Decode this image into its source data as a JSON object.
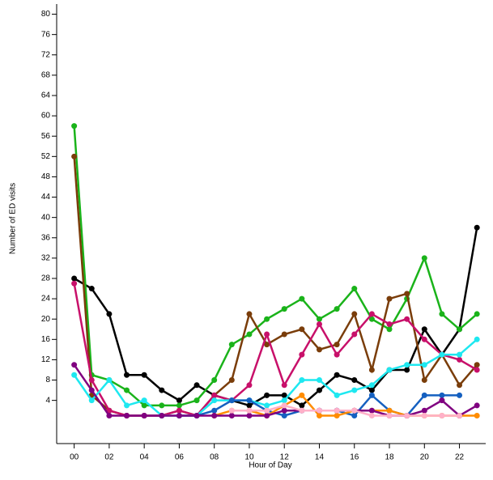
{
  "chart_data": {
    "type": "line",
    "x_label": "Hour of Day",
    "y_label": "Number of ED visits",
    "x": [
      0,
      1,
      2,
      3,
      4,
      5,
      6,
      7,
      8,
      9,
      10,
      11,
      12,
      13,
      14,
      15,
      16,
      17,
      18,
      19,
      20,
      21,
      22,
      23
    ],
    "xlim": [
      -1,
      23.5
    ],
    "xticks": [
      {
        "value": 0,
        "label": "00"
      },
      {
        "value": 2,
        "label": "02"
      },
      {
        "value": 4,
        "label": "04"
      },
      {
        "value": 6,
        "label": "06"
      },
      {
        "value": 8,
        "label": "08"
      },
      {
        "value": 10,
        "label": "10"
      },
      {
        "value": 12,
        "label": "12"
      },
      {
        "value": 14,
        "label": "14"
      },
      {
        "value": 16,
        "label": "16"
      },
      {
        "value": 18,
        "label": "18"
      },
      {
        "value": 20,
        "label": "20"
      },
      {
        "value": 22,
        "label": "22"
      }
    ],
    "ylim": [
      -4.5,
      82
    ],
    "yticks": [
      4,
      8,
      12,
      16,
      20,
      24,
      28,
      32,
      36,
      40,
      44,
      48,
      52,
      56,
      60,
      64,
      68,
      72,
      76,
      80
    ],
    "series": [
      {
        "color": "#000000",
        "values": [
          28,
          26,
          21,
          9,
          9,
          6,
          4,
          7,
          5,
          4,
          3,
          5,
          5,
          3,
          6,
          9,
          8,
          6,
          10,
          10,
          18,
          13,
          18,
          38
        ]
      },
      {
        "color": "#1ab31a",
        "values": [
          58,
          9,
          8,
          6,
          3,
          3,
          3,
          4,
          8,
          15,
          17,
          20,
          22,
          24,
          20,
          22,
          26,
          20,
          18,
          24,
          32,
          21,
          18,
          21
        ]
      },
      {
        "color": "#7a3d0a",
        "values": [
          52,
          5,
          2,
          1,
          1,
          1,
          2,
          1,
          5,
          8,
          21,
          15,
          17,
          18,
          14,
          15,
          21,
          10,
          24,
          25,
          8,
          13,
          7,
          11
        ]
      },
      {
        "color": "#c8106a",
        "values": [
          27,
          8,
          2,
          1,
          1,
          1,
          2,
          1,
          5,
          4,
          7,
          17,
          7,
          13,
          19,
          13,
          17,
          21,
          19,
          20,
          16,
          13,
          12,
          10
        ]
      },
      {
        "color": "#1ee8f0",
        "values": [
          9,
          4,
          8,
          3,
          4,
          1,
          1,
          1,
          4,
          4,
          4,
          3,
          4,
          8,
          8,
          5,
          6,
          7,
          10,
          11,
          11,
          13,
          13,
          16
        ]
      },
      {
        "color": "#1560c0",
        "values": [
          null,
          null,
          null,
          null,
          null,
          null,
          1,
          1,
          2,
          4,
          4,
          2,
          1,
          2,
          2,
          2,
          1,
          5,
          2,
          1,
          5,
          5,
          5,
          null
        ]
      },
      {
        "color": "#ff8c00",
        "values": [
          null,
          null,
          null,
          null,
          null,
          null,
          null,
          null,
          1,
          2,
          2,
          1,
          3,
          5,
          1,
          1,
          2,
          2,
          2,
          1,
          1,
          1,
          1,
          1
        ]
      },
      {
        "color": "#800080",
        "values": [
          11,
          6,
          1,
          1,
          1,
          1,
          1,
          1,
          1,
          1,
          1,
          1,
          2,
          2,
          2,
          2,
          2,
          2,
          1,
          1,
          2,
          4,
          1,
          3
        ]
      },
      {
        "color": "#ffb0c8",
        "values": [
          null,
          null,
          null,
          null,
          null,
          null,
          null,
          null,
          null,
          2,
          2,
          2,
          3,
          2,
          2,
          2,
          2,
          1,
          1,
          1,
          1,
          1,
          1,
          null
        ]
      }
    ]
  }
}
